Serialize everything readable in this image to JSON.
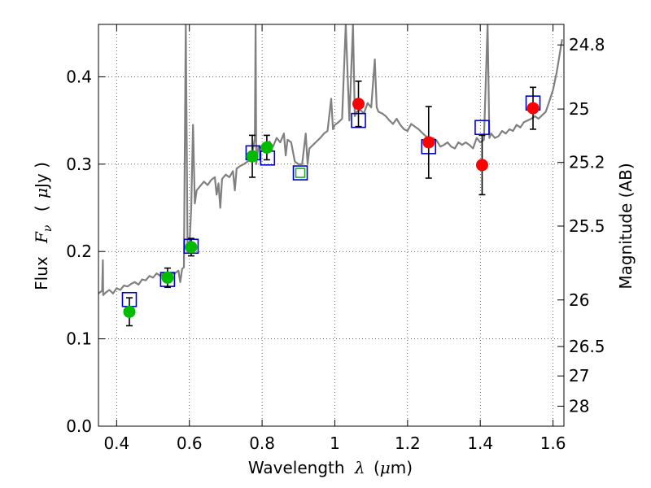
{
  "chart_data": {
    "type": "scatter",
    "title": "",
    "xlabel": "Wavelength",
    "xlabel_symbol": "λ",
    "xlabel_unit_open": "(",
    "xlabel_unit_mu": "μ",
    "xlabel_unit_rest": "m)",
    "ylabel": "Flux",
    "ylabel_symbol": "F",
    "ylabel_subscript": "ν",
    "ylabel_unit_open": "(",
    "ylabel_unit_mu": "μ",
    "ylabel_unit_rest": "Jy )",
    "y2label": "Magnitude (AB)",
    "xlim": [
      0.35,
      1.63
    ],
    "ylim": [
      0.0,
      0.46
    ],
    "grid": true,
    "x_ticks": [
      0.4,
      0.6,
      0.8,
      1.0,
      1.2,
      1.4,
      1.6
    ],
    "x_tick_labels": [
      "0.4",
      "0.6",
      "0.8",
      "1",
      "1.2",
      "1.4",
      "1.6"
    ],
    "y_ticks": [
      0.0,
      0.1,
      0.2,
      0.3,
      0.4
    ],
    "y_tick_labels": [
      "0.0",
      "0.1",
      "0.2",
      "0.3",
      "0.4"
    ],
    "y2_ticks": [
      24.8,
      25,
      25.2,
      25.5,
      26,
      26.5,
      27,
      28
    ],
    "y2_tick_labels": [
      "24.8",
      "25",
      "25.2",
      "25.5",
      "26",
      "26.5",
      "27",
      "28"
    ],
    "colors": {
      "spectrum": "#808080",
      "model_box": "#0000cc",
      "model_box_green": "#22aa22",
      "green_obs": "#00bb00",
      "red_obs": "#ff0000",
      "errorbar": "#000000",
      "grid": "#000000"
    },
    "spectrum": [
      [
        0.35,
        0.152
      ],
      [
        0.36,
        0.155
      ],
      [
        0.362,
        0.19
      ],
      [
        0.363,
        0.15
      ],
      [
        0.37,
        0.153
      ],
      [
        0.38,
        0.156
      ],
      [
        0.39,
        0.152
      ],
      [
        0.4,
        0.158
      ],
      [
        0.41,
        0.156
      ],
      [
        0.42,
        0.161
      ],
      [
        0.43,
        0.16
      ],
      [
        0.44,
        0.163
      ],
      [
        0.45,
        0.165
      ],
      [
        0.46,
        0.162
      ],
      [
        0.47,
        0.168
      ],
      [
        0.48,
        0.167
      ],
      [
        0.49,
        0.172
      ],
      [
        0.5,
        0.17
      ],
      [
        0.51,
        0.175
      ],
      [
        0.52,
        0.172
      ],
      [
        0.53,
        0.176
      ],
      [
        0.54,
        0.17
      ],
      [
        0.55,
        0.174
      ],
      [
        0.56,
        0.175
      ],
      [
        0.57,
        0.178
      ],
      [
        0.575,
        0.165
      ],
      [
        0.58,
        0.18
      ],
      [
        0.585,
        0.182
      ],
      [
        0.59,
        0.46
      ],
      [
        0.595,
        0.2
      ],
      [
        0.6,
        0.205
      ],
      [
        0.605,
        0.25
      ],
      [
        0.61,
        0.345
      ],
      [
        0.615,
        0.255
      ],
      [
        0.62,
        0.27
      ],
      [
        0.63,
        0.275
      ],
      [
        0.64,
        0.28
      ],
      [
        0.65,
        0.276
      ],
      [
        0.66,
        0.282
      ],
      [
        0.67,
        0.285
      ],
      [
        0.675,
        0.265
      ],
      [
        0.68,
        0.278
      ],
      [
        0.685,
        0.25
      ],
      [
        0.69,
        0.283
      ],
      [
        0.7,
        0.288
      ],
      [
        0.71,
        0.285
      ],
      [
        0.72,
        0.292
      ],
      [
        0.725,
        0.27
      ],
      [
        0.73,
        0.295
      ],
      [
        0.74,
        0.298
      ],
      [
        0.75,
        0.3
      ],
      [
        0.76,
        0.303
      ],
      [
        0.77,
        0.305
      ],
      [
        0.78,
        0.33
      ],
      [
        0.782,
        0.46
      ],
      [
        0.784,
        0.3
      ],
      [
        0.79,
        0.32
      ],
      [
        0.8,
        0.318
      ],
      [
        0.81,
        0.322
      ],
      [
        0.82,
        0.326
      ],
      [
        0.83,
        0.32
      ],
      [
        0.84,
        0.33
      ],
      [
        0.85,
        0.325
      ],
      [
        0.86,
        0.335
      ],
      [
        0.865,
        0.31
      ],
      [
        0.87,
        0.328
      ],
      [
        0.88,
        0.325
      ],
      [
        0.89,
        0.303
      ],
      [
        0.9,
        0.3
      ],
      [
        0.91,
        0.3
      ],
      [
        0.92,
        0.335
      ],
      [
        0.925,
        0.3
      ],
      [
        0.93,
        0.318
      ],
      [
        0.94,
        0.322
      ],
      [
        0.95,
        0.326
      ],
      [
        0.96,
        0.33
      ],
      [
        0.97,
        0.335
      ],
      [
        0.98,
        0.338
      ],
      [
        0.99,
        0.375
      ],
      [
        0.995,
        0.34
      ],
      [
        1.0,
        0.345
      ],
      [
        1.01,
        0.348
      ],
      [
        1.02,
        0.352
      ],
      [
        1.03,
        0.46
      ],
      [
        1.04,
        0.35
      ],
      [
        1.05,
        0.46
      ],
      [
        1.055,
        0.355
      ],
      [
        1.06,
        0.36
      ],
      [
        1.07,
        0.362
      ],
      [
        1.08,
        0.358
      ],
      [
        1.09,
        0.37
      ],
      [
        1.1,
        0.365
      ],
      [
        1.11,
        0.42
      ],
      [
        1.115,
        0.365
      ],
      [
        1.12,
        0.36
      ],
      [
        1.13,
        0.358
      ],
      [
        1.14,
        0.355
      ],
      [
        1.15,
        0.35
      ],
      [
        1.16,
        0.346
      ],
      [
        1.17,
        0.352
      ],
      [
        1.18,
        0.345
      ],
      [
        1.19,
        0.34
      ],
      [
        1.2,
        0.338
      ],
      [
        1.21,
        0.346
      ],
      [
        1.22,
        0.343
      ],
      [
        1.23,
        0.34
      ],
      [
        1.24,
        0.336
      ],
      [
        1.25,
        0.332
      ],
      [
        1.26,
        0.33
      ],
      [
        1.27,
        0.33
      ],
      [
        1.28,
        0.327
      ],
      [
        1.29,
        0.32
      ],
      [
        1.3,
        0.322
      ],
      [
        1.31,
        0.325
      ],
      [
        1.32,
        0.32
      ],
      [
        1.33,
        0.318
      ],
      [
        1.34,
        0.325
      ],
      [
        1.35,
        0.322
      ],
      [
        1.36,
        0.325
      ],
      [
        1.37,
        0.322
      ],
      [
        1.38,
        0.318
      ],
      [
        1.39,
        0.33
      ],
      [
        1.4,
        0.325
      ],
      [
        1.41,
        0.328
      ],
      [
        1.42,
        0.46
      ],
      [
        1.425,
        0.33
      ],
      [
        1.43,
        0.335
      ],
      [
        1.44,
        0.33
      ],
      [
        1.45,
        0.332
      ],
      [
        1.46,
        0.338
      ],
      [
        1.47,
        0.335
      ],
      [
        1.48,
        0.34
      ],
      [
        1.49,
        0.338
      ],
      [
        1.5,
        0.345
      ],
      [
        1.51,
        0.342
      ],
      [
        1.52,
        0.348
      ],
      [
        1.53,
        0.35
      ],
      [
        1.54,
        0.352
      ],
      [
        1.55,
        0.355
      ],
      [
        1.56,
        0.352
      ],
      [
        1.57,
        0.356
      ],
      [
        1.58,
        0.36
      ],
      [
        1.59,
        0.372
      ],
      [
        1.6,
        0.385
      ],
      [
        1.61,
        0.405
      ],
      [
        1.62,
        0.43
      ],
      [
        1.625,
        0.443
      ]
    ],
    "model_boxes": [
      {
        "x": 0.435,
        "y": 0.145,
        "color_key": "model_box"
      },
      {
        "x": 0.54,
        "y": 0.168,
        "color_key": "model_box"
      },
      {
        "x": 0.605,
        "y": 0.206,
        "color_key": "model_box"
      },
      {
        "x": 0.775,
        "y": 0.313,
        "color_key": "model_box"
      },
      {
        "x": 0.815,
        "y": 0.307,
        "color_key": "model_box"
      },
      {
        "x": 0.905,
        "y": 0.29,
        "color_key": "model_box"
      },
      {
        "x": 0.905,
        "y": 0.29,
        "color_key": "model_box_green",
        "inner": true
      },
      {
        "x": 1.065,
        "y": 0.35,
        "color_key": "model_box"
      },
      {
        "x": 1.258,
        "y": 0.32,
        "color_key": "model_box"
      },
      {
        "x": 1.405,
        "y": 0.342,
        "color_key": "model_box"
      },
      {
        "x": 1.545,
        "y": 0.37,
        "color_key": "model_box"
      }
    ],
    "series": [
      {
        "name": "green_obs",
        "color_key": "green_obs",
        "points": [
          {
            "x": 0.435,
            "y": 0.131,
            "err": 0.016
          },
          {
            "x": 0.54,
            "y": 0.17,
            "err": 0.011
          },
          {
            "x": 0.605,
            "y": 0.205,
            "err": 0.01
          },
          {
            "x": 0.773,
            "y": 0.309,
            "err": 0.024
          },
          {
            "x": 0.813,
            "y": 0.319,
            "err": 0.014
          }
        ]
      },
      {
        "name": "red_obs",
        "color_key": "red_obs",
        "points": [
          {
            "x": 1.065,
            "y": 0.369,
            "err": 0.026
          },
          {
            "x": 1.258,
            "y": 0.325,
            "err": 0.041
          },
          {
            "x": 1.405,
            "y": 0.299,
            "err": 0.034
          },
          {
            "x": 1.545,
            "y": 0.364,
            "err": 0.024
          }
        ]
      }
    ]
  }
}
